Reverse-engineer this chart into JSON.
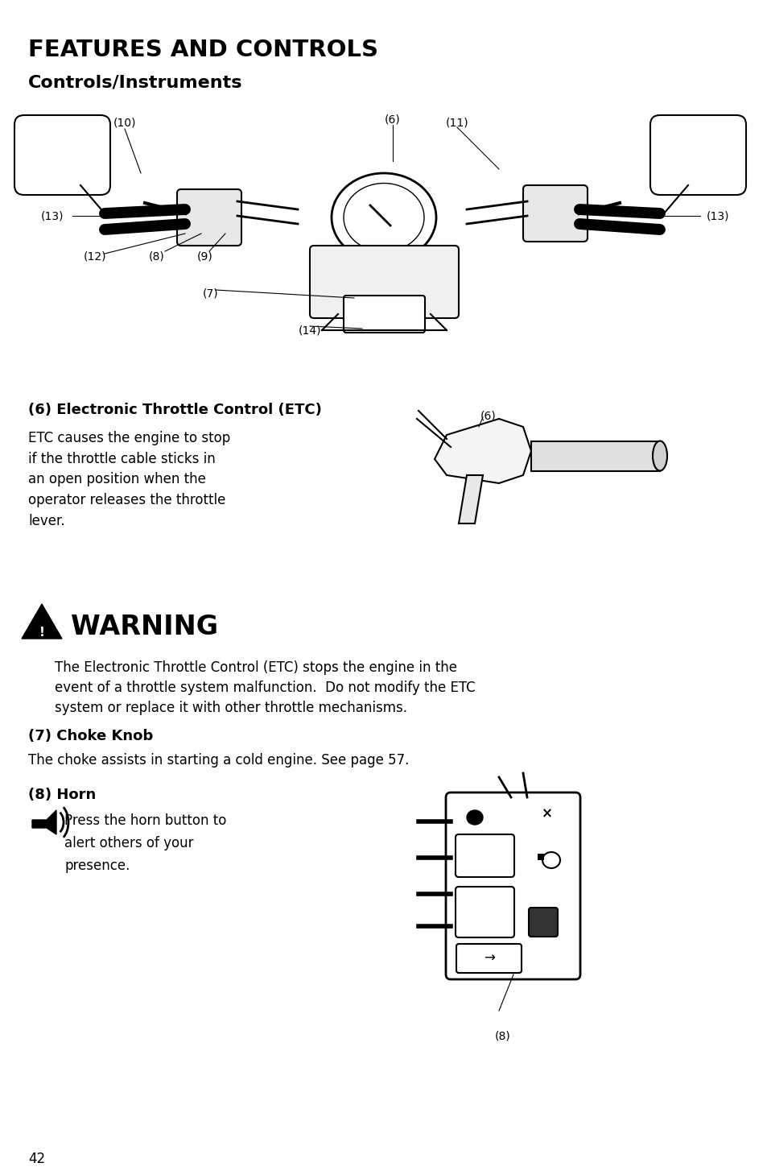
{
  "title": "FEATURES AND CONTROLS",
  "subtitle": "Controls/Instruments",
  "bg_color": "#ffffff",
  "text_color": "#000000",
  "page_number": "42",
  "section6_heading": "(6) Electronic Throttle Control (ETC)",
  "section6_body": "ETC causes the engine to stop\nif the throttle cable sticks in\nan open position when the\noperator releases the throttle\nlever.",
  "warning_title": "WARNING",
  "warning_body": "The Electronic Throttle Control (ETC) stops the engine in the\nevent of a throttle system malfunction.  Do not modify the ETC\nsystem or replace it with other throttle mechanisms.",
  "section7_heading": "(7) Choke Knob",
  "section7_body": "The choke assists in starting a cold engine. See page 57.",
  "section8_heading": "(8) Horn",
  "section8_body": "Press the horn button to\nalert others of your\npresence."
}
